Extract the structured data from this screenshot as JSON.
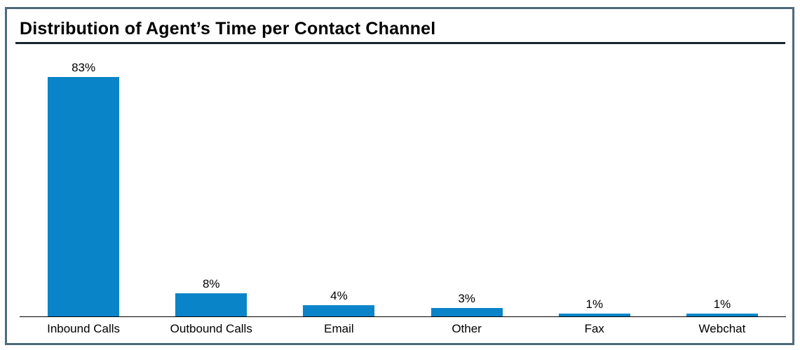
{
  "chart_data": {
    "type": "bar",
    "title": "Distribution of Agent’s Time per Contact Channel",
    "categories": [
      "Inbound Calls",
      "Outbound Calls",
      "Email",
      "Other",
      "Fax",
      "Webchat"
    ],
    "values": [
      83,
      8,
      4,
      3,
      1,
      1
    ],
    "value_labels": [
      "83%",
      "8%",
      "4%",
      "3%",
      "1%",
      "1%"
    ],
    "unit": "%",
    "xlabel": "",
    "ylabel": "",
    "ylim": [
      0,
      100
    ],
    "grid": false,
    "legend": "none",
    "axis": "x-baseline-only"
  },
  "colors": {
    "bar": "#0984c8",
    "frame_border": "#4e6a7a",
    "title_rule": "#15262e",
    "axis_line": "#000000",
    "text": "#000000",
    "background": "#ffffff"
  }
}
